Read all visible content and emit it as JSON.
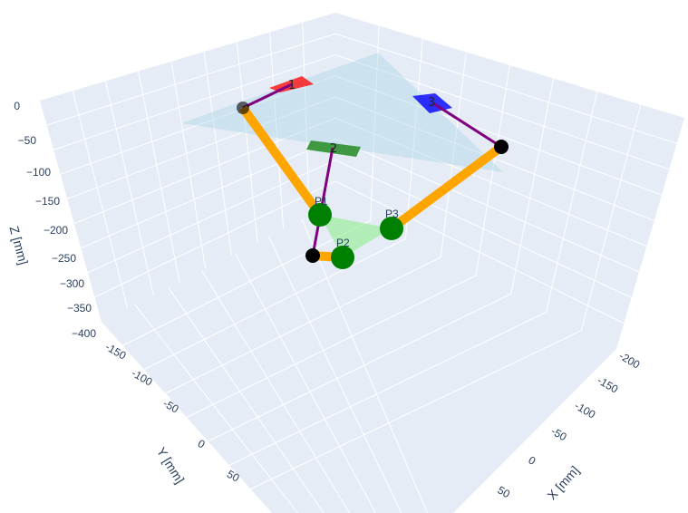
{
  "chart_data": {
    "type": "scatter3d",
    "axes": {
      "x": {
        "title": "X [mm]",
        "ticks": [
          "-200",
          "-150",
          "-100",
          "-50",
          "0",
          "50"
        ]
      },
      "y": {
        "title": "Y [mm]",
        "ticks": [
          "-150",
          "-100",
          "-50",
          "0",
          "50"
        ]
      },
      "z": {
        "title": "Z [mm]",
        "ticks": [
          "0",
          "−50",
          "−100",
          "−150",
          "−200",
          "−250",
          "−300",
          "−350",
          "−400"
        ]
      }
    },
    "grid": true,
    "colors": {
      "background": "#e5ecf6",
      "grid": "#ffffff",
      "base_plane": "#add8e6",
      "effector_plane": "#90ee90",
      "link": "#ffa500",
      "rod": "#800080",
      "joint": "#008000",
      "knee": "#000000",
      "motor_1": "#ff0000",
      "motor_2": "#228b22",
      "motor_3": "#0000ff"
    },
    "motors": [
      {
        "label": "1",
        "color": "#ff0000"
      },
      {
        "label": "2",
        "color": "#228b22"
      },
      {
        "label": "3",
        "color": "#0000ff"
      }
    ],
    "effector_points": [
      {
        "label": "P1"
      },
      {
        "label": "P2"
      },
      {
        "label": "P3"
      }
    ]
  }
}
